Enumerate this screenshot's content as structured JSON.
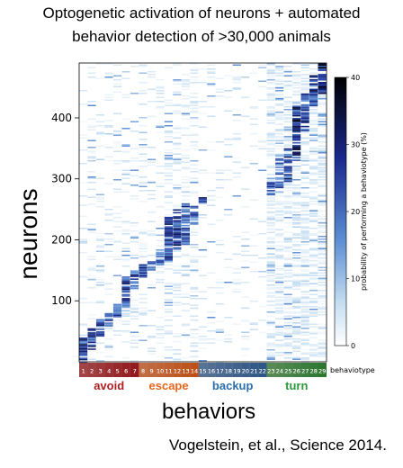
{
  "title_lines": [
    "Optogenetic activation of neurons + automated",
    "behavior detection of >30,000 animals"
  ],
  "xlabel": "behaviors",
  "ylabel": "neurons",
  "citation": "Vogelstein, et al., Science 2014.",
  "chart_data": {
    "type": "heatmap",
    "title": "",
    "x_categories": [
      "1",
      "2",
      "3",
      "4",
      "5",
      "6",
      "7",
      "8",
      "9",
      "10",
      "11",
      "12",
      "13",
      "14",
      "15",
      "16",
      "17",
      "18",
      "19",
      "20",
      "21",
      "22",
      "23",
      "24",
      "25",
      "26",
      "27",
      "28",
      "29"
    ],
    "x_axis_label": "behaviotype",
    "y_ticks": [
      100,
      200,
      300,
      400
    ],
    "y_range": [
      0,
      490
    ],
    "groups": [
      {
        "label": "avoid",
        "color": "#b01e23",
        "from": 1,
        "to": 7
      },
      {
        "label": "escape",
        "color": "#e8661c",
        "from": 8,
        "to": 14
      },
      {
        "label": "backup",
        "color": "#2a6fad",
        "from": 15,
        "to": 22
      },
      {
        "label": "turn",
        "color": "#2a9a3c",
        "from": 23,
        "to": 29
      }
    ],
    "colorbar": {
      "label": "probability of performing a behaviotype (%)",
      "ticks": [
        0,
        10,
        20,
        30,
        40
      ],
      "range": [
        0,
        40
      ],
      "low_color": "#ffffff",
      "high_color": "#000000"
    },
    "strong_blocks": [
      {
        "col": 1,
        "y0": 0,
        "y1": 40,
        "value": 32
      },
      {
        "col": 2,
        "y0": 20,
        "y1": 55,
        "value": 30
      },
      {
        "col": 3,
        "y0": 40,
        "y1": 70,
        "value": 30
      },
      {
        "col": 4,
        "y0": 60,
        "y1": 80,
        "value": 28
      },
      {
        "col": 5,
        "y0": 75,
        "y1": 95,
        "value": 28
      },
      {
        "col": 6,
        "y0": 90,
        "y1": 140,
        "value": 30
      },
      {
        "col": 7,
        "y0": 120,
        "y1": 150,
        "value": 28
      },
      {
        "col": 8,
        "y0": 140,
        "y1": 160,
        "value": 30
      },
      {
        "col": 9,
        "y0": 150,
        "y1": 165,
        "value": 26
      },
      {
        "col": 10,
        "y0": 160,
        "y1": 180,
        "value": 24
      },
      {
        "col": 11,
        "y0": 165,
        "y1": 240,
        "value": 30
      },
      {
        "col": 12,
        "y0": 180,
        "y1": 250,
        "value": 32
      },
      {
        "col": 13,
        "y0": 190,
        "y1": 260,
        "value": 30
      },
      {
        "col": 14,
        "y0": 225,
        "y1": 258,
        "value": 26
      },
      {
        "col": 15,
        "y0": 258,
        "y1": 270,
        "value": 28
      },
      {
        "col": 23,
        "y0": 275,
        "y1": 295,
        "value": 26
      },
      {
        "col": 24,
        "y0": 285,
        "y1": 340,
        "value": 24
      },
      {
        "col": 25,
        "y0": 295,
        "y1": 350,
        "value": 30
      },
      {
        "col": 26,
        "y0": 330,
        "y1": 420,
        "value": 34
      },
      {
        "col": 27,
        "y0": 380,
        "y1": 440,
        "value": 30
      },
      {
        "col": 28,
        "y0": 420,
        "y1": 470,
        "value": 34
      },
      {
        "col": 29,
        "y0": 440,
        "y1": 490,
        "value": 38
      }
    ]
  }
}
